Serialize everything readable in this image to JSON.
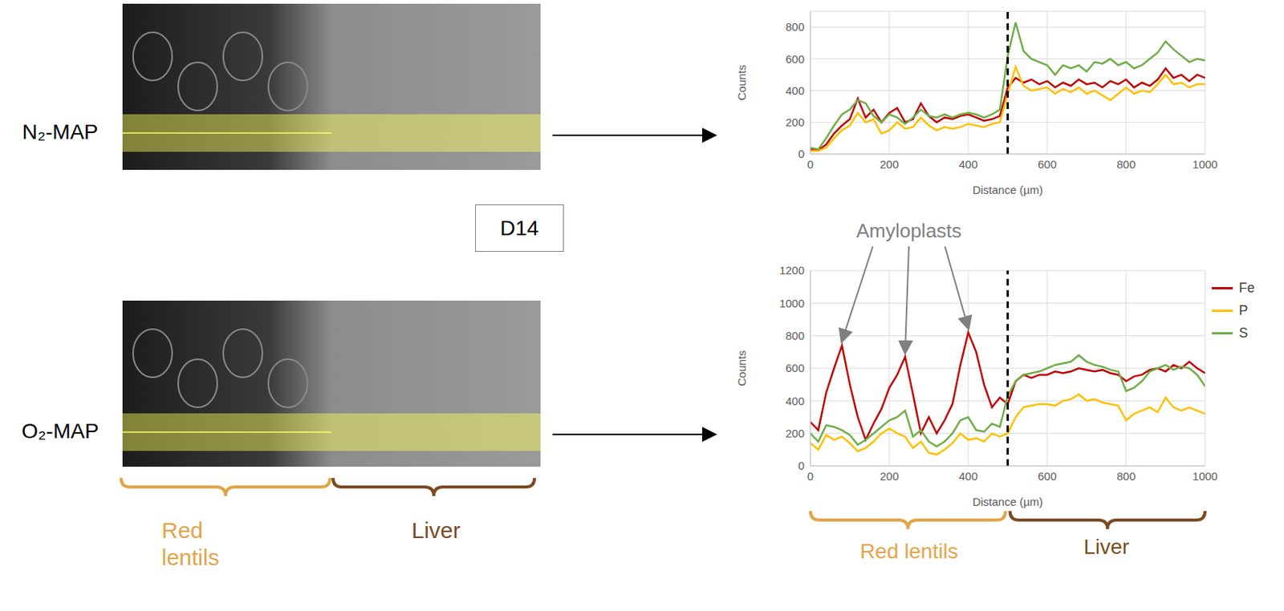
{
  "label_box": "D14",
  "regions": [
    {
      "name": "Red lentils",
      "color": "#e3a44a"
    },
    {
      "name": "Liver",
      "color": "#7b4a22"
    }
  ],
  "chart_data": [
    {
      "type": "line",
      "image_label": "N₂-MAP",
      "x": [
        0,
        20,
        40,
        60,
        80,
        100,
        120,
        140,
        160,
        180,
        200,
        220,
        240,
        260,
        280,
        300,
        320,
        340,
        360,
        380,
        400,
        420,
        440,
        460,
        480,
        500,
        520,
        540,
        560,
        580,
        600,
        620,
        640,
        660,
        680,
        700,
        720,
        740,
        760,
        780,
        800,
        820,
        840,
        860,
        880,
        900,
        920,
        940,
        960,
        980,
        1000
      ],
      "series": [
        {
          "name": "Fe",
          "color": "#c00000",
          "values": [
            30,
            25,
            60,
            130,
            180,
            220,
            350,
            230,
            280,
            200,
            260,
            290,
            200,
            220,
            320,
            240,
            200,
            230,
            220,
            240,
            250,
            230,
            210,
            220,
            240,
            420,
            480,
            450,
            470,
            440,
            460,
            420,
            450,
            430,
            470,
            440,
            450,
            420,
            460,
            440,
            470,
            420,
            450,
            430,
            470,
            540,
            480,
            500,
            460,
            500,
            480
          ]
        },
        {
          "name": "P",
          "color": "#ffc000",
          "values": [
            20,
            20,
            40,
            100,
            150,
            180,
            260,
            200,
            220,
            130,
            150,
            200,
            160,
            170,
            230,
            180,
            150,
            170,
            160,
            170,
            190,
            180,
            170,
            190,
            200,
            380,
            550,
            430,
            400,
            410,
            420,
            380,
            410,
            390,
            420,
            380,
            400,
            370,
            340,
            380,
            420,
            380,
            400,
            390,
            440,
            500,
            440,
            450,
            420,
            440,
            440
          ]
        },
        {
          "name": "S",
          "color": "#70ad47",
          "values": [
            40,
            30,
            100,
            180,
            250,
            280,
            340,
            320,
            240,
            200,
            250,
            230,
            190,
            230,
            280,
            240,
            230,
            250,
            230,
            250,
            260,
            250,
            230,
            250,
            280,
            620,
            830,
            650,
            600,
            580,
            560,
            500,
            560,
            540,
            560,
            520,
            580,
            570,
            600,
            560,
            580,
            540,
            560,
            600,
            640,
            710,
            660,
            620,
            580,
            600,
            590
          ]
        }
      ],
      "xlabel": "Distance (µm)",
      "ylabel": "Counts",
      "xlim": [
        0,
        1000
      ],
      "xticks": [
        0,
        200,
        400,
        600,
        800,
        1000
      ],
      "ylim": [
        0,
        900
      ],
      "yticks": [
        0,
        200,
        400,
        600,
        800
      ],
      "grid": true,
      "vline": {
        "x": 500,
        "line_style": "dashed"
      }
    },
    {
      "type": "line",
      "image_label": "O₂-MAP",
      "x": [
        0,
        20,
        40,
        60,
        80,
        100,
        120,
        140,
        160,
        180,
        200,
        220,
        240,
        260,
        280,
        300,
        320,
        340,
        360,
        380,
        400,
        420,
        440,
        460,
        480,
        500,
        520,
        540,
        560,
        580,
        600,
        620,
        640,
        660,
        680,
        700,
        720,
        740,
        760,
        780,
        800,
        820,
        840,
        860,
        880,
        900,
        920,
        940,
        960,
        980,
        1000
      ],
      "series": [
        {
          "name": "Fe",
          "color": "#c00000",
          "values": [
            270,
            220,
            450,
            600,
            740,
            500,
            300,
            160,
            260,
            350,
            480,
            560,
            670,
            440,
            200,
            300,
            200,
            280,
            380,
            620,
            820,
            700,
            500,
            360,
            420,
            380,
            520,
            560,
            540,
            560,
            560,
            580,
            570,
            580,
            600,
            590,
            580,
            590,
            570,
            560,
            520,
            550,
            560,
            590,
            600,
            580,
            620,
            600,
            640,
            600,
            570
          ]
        },
        {
          "name": "P",
          "color": "#ffc000",
          "values": [
            140,
            100,
            190,
            160,
            180,
            140,
            90,
            110,
            150,
            200,
            230,
            200,
            180,
            110,
            150,
            80,
            70,
            100,
            140,
            200,
            160,
            170,
            150,
            200,
            180,
            200,
            300,
            360,
            370,
            380,
            380,
            370,
            400,
            410,
            440,
            400,
            410,
            390,
            380,
            370,
            280,
            320,
            340,
            360,
            330,
            420,
            360,
            340,
            360,
            340,
            320
          ]
        },
        {
          "name": "S",
          "color": "#70ad47",
          "values": [
            200,
            150,
            250,
            240,
            220,
            190,
            130,
            160,
            200,
            240,
            280,
            300,
            340,
            180,
            220,
            150,
            120,
            150,
            200,
            280,
            300,
            220,
            210,
            260,
            240,
            430,
            520,
            560,
            570,
            580,
            600,
            620,
            630,
            640,
            680,
            640,
            620,
            610,
            590,
            580,
            460,
            480,
            520,
            580,
            600,
            620,
            590,
            610,
            600,
            560,
            490
          ]
        }
      ],
      "xlabel": "Distance (µm)",
      "ylabel": "Counts",
      "xlim": [
        0,
        1000
      ],
      "xticks": [
        0,
        200,
        400,
        600,
        800,
        1000
      ],
      "ylim": [
        0,
        1200
      ],
      "yticks": [
        0,
        200,
        400,
        600,
        800,
        1000,
        1200
      ],
      "grid": true,
      "legend": "right",
      "vline": {
        "x": 500,
        "line_style": "dashed"
      },
      "annotations": [
        {
          "text": "Amyloplasts",
          "points": [
            {
              "x": 80,
              "y": 740
            },
            {
              "x": 240,
              "y": 670
            },
            {
              "x": 400,
              "y": 820
            }
          ]
        }
      ]
    }
  ]
}
